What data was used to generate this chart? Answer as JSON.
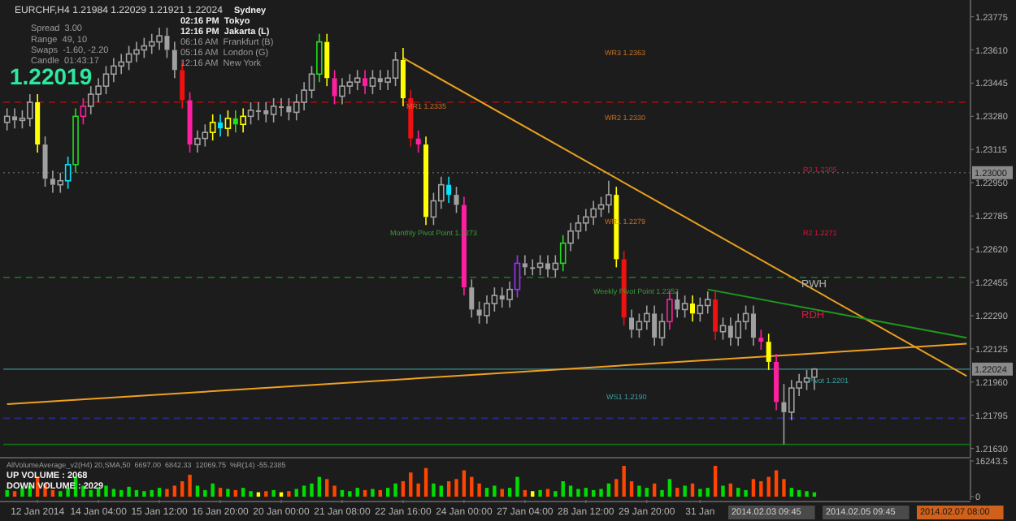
{
  "chart_data": [
    {
      "type": "candlestick",
      "title": "EURCHF,H4  1.21984 1.22029 1.21921 1.22024",
      "categories": [
        null,
        null,
        null,
        null,
        null,
        null,
        null,
        null,
        null,
        null,
        null,
        null,
        null,
        null,
        null,
        null,
        null,
        null,
        null,
        null,
        null,
        null,
        null,
        null,
        null,
        null,
        null,
        null,
        null,
        null,
        null,
        null,
        null,
        null,
        null,
        null,
        null,
        null,
        null,
        null,
        null,
        null,
        null,
        null,
        null,
        null,
        null,
        null,
        null,
        null,
        null,
        null,
        null,
        null,
        null,
        null,
        null,
        null,
        null,
        null,
        null,
        null,
        null,
        null,
        null,
        null,
        null,
        null,
        null,
        null,
        null,
        null,
        null,
        null,
        null,
        null,
        null,
        null,
        null,
        null,
        null,
        null,
        null,
        null,
        null,
        null,
        null,
        null,
        null,
        null,
        null,
        null,
        null,
        null,
        null,
        null,
        null,
        null,
        null,
        null,
        null,
        null,
        null,
        null,
        null,
        null,
        null,
        null,
        null,
        null,
        null,
        null,
        null,
        null,
        null,
        null,
        null,
        null,
        null,
        null,
        null,
        null,
        null,
        null,
        null,
        null,
        null
      ],
      "ohlc": [
        [
          1.2325,
          1.2332,
          1.2321,
          1.2328
        ],
        [
          1.2328,
          1.2332,
          1.2322,
          1.2326
        ],
        [
          1.2326,
          1.2331,
          1.2322,
          1.2327
        ],
        [
          1.2327,
          1.2339,
          1.2323,
          1.2335
        ],
        [
          1.2335,
          1.2339,
          1.231,
          1.2314
        ],
        [
          1.2314,
          1.2318,
          1.2293,
          1.2297
        ],
        [
          1.2297,
          1.2301,
          1.229,
          1.2294
        ],
        [
          1.2294,
          1.23,
          1.229,
          1.2296
        ],
        [
          1.2296,
          1.2308,
          1.2292,
          1.2304
        ],
        [
          1.2304,
          1.2332,
          1.23,
          1.2328
        ],
        [
          1.2328,
          1.2337,
          1.2324,
          1.2333
        ],
        [
          1.2333,
          1.2343,
          1.2329,
          1.2339
        ],
        [
          1.2339,
          1.2347,
          1.2335,
          1.2343
        ],
        [
          1.2343,
          1.2353,
          1.2339,
          1.2349
        ],
        [
          1.2349,
          1.2357,
          1.2345,
          1.2353
        ],
        [
          1.2353,
          1.2359,
          1.2349,
          1.2355
        ],
        [
          1.2355,
          1.2363,
          1.2351,
          1.2359
        ],
        [
          1.2359,
          1.2365,
          1.2355,
          1.2361
        ],
        [
          1.2361,
          1.2367,
          1.2357,
          1.2363
        ],
        [
          1.2363,
          1.2369,
          1.2359,
          1.2365
        ],
        [
          1.2365,
          1.2372,
          1.2361,
          1.2368
        ],
        [
          1.2368,
          1.2372,
          1.2357,
          1.2361
        ],
        [
          1.2361,
          1.2365,
          1.2347,
          1.2351
        ],
        [
          1.2351,
          1.2355,
          1.2332,
          1.2336
        ],
        [
          1.2336,
          1.234,
          1.231,
          1.2314
        ],
        [
          1.2314,
          1.2321,
          1.231,
          1.2317
        ],
        [
          1.2317,
          1.2324,
          1.2313,
          1.232
        ],
        [
          1.232,
          1.2329,
          1.2316,
          1.2325
        ],
        [
          1.2325,
          1.2329,
          1.2318,
          1.2322
        ],
        [
          1.2322,
          1.2331,
          1.2318,
          1.2327
        ],
        [
          1.2327,
          1.2331,
          1.232,
          1.2324
        ],
        [
          1.2324,
          1.2332,
          1.232,
          1.2328
        ],
        [
          1.2328,
          1.2335,
          1.2324,
          1.2331
        ],
        [
          1.2331,
          1.2335,
          1.2326,
          1.2331
        ],
        [
          1.2331,
          1.2335,
          1.2325,
          1.2329
        ],
        [
          1.2329,
          1.2337,
          1.2325,
          1.2333
        ],
        [
          1.2333,
          1.2337,
          1.2328,
          1.2333
        ],
        [
          1.2333,
          1.2337,
          1.2326,
          1.233
        ],
        [
          1.233,
          1.2339,
          1.2326,
          1.2335
        ],
        [
          1.2335,
          1.2345,
          1.2331,
          1.2341
        ],
        [
          1.2341,
          1.2353,
          1.2337,
          1.2349
        ],
        [
          1.2349,
          1.2369,
          1.2345,
          1.2365
        ],
        [
          1.2365,
          1.2369,
          1.2343,
          1.2347
        ],
        [
          1.2347,
          1.2351,
          1.2334,
          1.2338
        ],
        [
          1.2338,
          1.2347,
          1.2334,
          1.2343
        ],
        [
          1.2343,
          1.2349,
          1.2339,
          1.2345
        ],
        [
          1.2345,
          1.2351,
          1.2341,
          1.2347
        ],
        [
          1.2347,
          1.2351,
          1.2339,
          1.2343
        ],
        [
          1.2343,
          1.2351,
          1.2339,
          1.2347
        ],
        [
          1.2347,
          1.2351,
          1.2341,
          1.2345
        ],
        [
          1.2345,
          1.2351,
          1.2341,
          1.2347
        ],
        [
          1.2347,
          1.236,
          1.2343,
          1.2356
        ],
        [
          1.2356,
          1.2362,
          1.2333,
          1.2337
        ],
        [
          1.2337,
          1.2341,
          1.2313,
          1.2317
        ],
        [
          1.2317,
          1.2321,
          1.231,
          1.2314
        ],
        [
          1.2314,
          1.2318,
          1.2274,
          1.2278
        ],
        [
          1.2278,
          1.229,
          1.2274,
          1.2286
        ],
        [
          1.2286,
          1.2298,
          1.2282,
          1.2294
        ],
        [
          1.2294,
          1.2298,
          1.2285,
          1.2289
        ],
        [
          1.2289,
          1.2293,
          1.228,
          1.2284
        ],
        [
          1.2284,
          1.2288,
          1.2239,
          1.2243
        ],
        [
          1.2243,
          1.2247,
          1.2228,
          1.2232
        ],
        [
          1.2232,
          1.2236,
          1.2225,
          1.2229
        ],
        [
          1.2229,
          1.2239,
          1.2225,
          1.2235
        ],
        [
          1.2235,
          1.2243,
          1.2231,
          1.2239
        ],
        [
          1.2239,
          1.2243,
          1.2233,
          1.2237
        ],
        [
          1.2237,
          1.2246,
          1.2233,
          1.2242
        ],
        [
          1.2242,
          1.2259,
          1.2238,
          1.2255
        ],
        [
          1.2255,
          1.2259,
          1.2249,
          1.2253
        ],
        [
          1.2253,
          1.2257,
          1.2249,
          1.2253
        ],
        [
          1.2253,
          1.2259,
          1.2249,
          1.2255
        ],
        [
          1.2255,
          1.2259,
          1.2248,
          1.2252
        ],
        [
          1.2252,
          1.2259,
          1.2248,
          1.2255
        ],
        [
          1.2255,
          1.2269,
          1.2251,
          1.2265
        ],
        [
          1.2265,
          1.2275,
          1.2261,
          1.2271
        ],
        [
          1.2271,
          1.2279,
          1.2267,
          1.2275
        ],
        [
          1.2275,
          1.2282,
          1.2271,
          1.2278
        ],
        [
          1.2278,
          1.2286,
          1.2274,
          1.2282
        ],
        [
          1.2282,
          1.2288,
          1.2278,
          1.2284
        ],
        [
          1.2284,
          1.2296,
          1.228,
          1.2289
        ],
        [
          1.2289,
          1.2293,
          1.2253,
          1.2257
        ],
        [
          1.2257,
          1.2261,
          1.2224,
          1.2228
        ],
        [
          1.2228,
          1.2232,
          1.2218,
          1.2222
        ],
        [
          1.2222,
          1.223,
          1.2218,
          1.2226
        ],
        [
          1.2226,
          1.2234,
          1.2222,
          1.223
        ],
        [
          1.223,
          1.2234,
          1.2214,
          1.2218
        ],
        [
          1.2218,
          1.223,
          1.2214,
          1.2226
        ],
        [
          1.2226,
          1.2241,
          1.2222,
          1.2237
        ],
        [
          1.2237,
          1.2241,
          1.2228,
          1.2232
        ],
        [
          1.2232,
          1.2239,
          1.2228,
          1.2235
        ],
        [
          1.2235,
          1.2239,
          1.2226,
          1.223
        ],
        [
          1.223,
          1.2238,
          1.2226,
          1.2234
        ],
        [
          1.2234,
          1.2241,
          1.223,
          1.2237
        ],
        [
          1.2237,
          1.2241,
          1.2217,
          1.2221
        ],
        [
          1.2221,
          1.2228,
          1.2217,
          1.2224
        ],
        [
          1.2224,
          1.2228,
          1.2214,
          1.2218
        ],
        [
          1.2218,
          1.223,
          1.2214,
          1.2226
        ],
        [
          1.2226,
          1.2234,
          1.2222,
          1.223
        ],
        [
          1.223,
          1.2234,
          1.2214,
          1.2218
        ],
        [
          1.2218,
          1.2222,
          1.2212,
          1.2216
        ],
        [
          1.2216,
          1.222,
          1.2202,
          1.2206
        ],
        [
          1.2206,
          1.221,
          1.2182,
          1.2186
        ],
        [
          1.2186,
          1.2195,
          1.2165,
          1.2181
        ],
        [
          1.2181,
          1.2197,
          1.2177,
          1.2193
        ],
        [
          1.2193,
          1.22,
          1.2189,
          1.2196
        ],
        [
          1.2196,
          1.2202,
          1.2192,
          1.2198
        ],
        [
          1.21984,
          1.22029,
          1.21921,
          1.22024
        ],
        null,
        null,
        null,
        null,
        null,
        null,
        null,
        null,
        null,
        null,
        null,
        null,
        null,
        null,
        null,
        null,
        null,
        null,
        null,
        null
      ],
      "colors": [
        "#a0a0a0",
        "#a0a0a0",
        "#a0a0a0",
        "#a0a0a0",
        "#ffff00",
        "#a0a0a0",
        "#a0a0a0",
        "#a0a0a0",
        "#00e5ff",
        "#22dd22",
        "#ff1fa0",
        "#a0a0a0",
        "#a0a0a0",
        "#a0a0a0",
        "#a0a0a0",
        "#a0a0a0",
        "#a0a0a0",
        "#a0a0a0",
        "#a0a0a0",
        "#a0a0a0",
        "#a0a0a0",
        "#a0a0a0",
        "#a0a0a0",
        "#ee1111",
        "#ff1fa0",
        "#a0a0a0",
        "#a0a0a0",
        "#ffff00",
        "#00e5ff",
        "#ffff00",
        "#22dd22",
        "#ffff00",
        "#a0a0a0",
        "#a0a0a0",
        "#a0a0a0",
        "#a0a0a0",
        "#a0a0a0",
        "#a0a0a0",
        "#a0a0a0",
        "#a0a0a0",
        "#a0a0a0",
        "#22dd22",
        "#ffff00",
        "#ff1fa0",
        "#a0a0a0",
        "#a0a0a0",
        "#a0a0a0",
        "#ff1fa0",
        "#a0a0a0",
        "#a0a0a0",
        "#a0a0a0",
        "#a0a0a0",
        "#ffff00",
        "#ee1111",
        "#ff1fa0",
        "#ffff00",
        "#a0a0a0",
        "#a0a0a0",
        "#00e5ff",
        "#a0a0a0",
        "#ff1fa0",
        "#a0a0a0",
        "#a0a0a0",
        "#a0a0a0",
        "#a0a0a0",
        "#a0a0a0",
        "#a0a0a0",
        "#9933ff",
        "#a0a0a0",
        "#a0a0a0",
        "#a0a0a0",
        "#a0a0a0",
        "#a0a0a0",
        "#22dd22",
        "#a0a0a0",
        "#a0a0a0",
        "#a0a0a0",
        "#a0a0a0",
        "#a0a0a0",
        "#a0a0a0",
        "#ffff00",
        "#ee1111",
        "#a0a0a0",
        "#a0a0a0",
        "#a0a0a0",
        "#a0a0a0",
        "#a0a0a0",
        "#ff1fa0",
        "#a0a0a0",
        "#a0a0a0",
        "#ffff00",
        "#a0a0a0",
        "#a0a0a0",
        "#ee1111",
        "#a0a0a0",
        "#a0a0a0",
        "#a0a0a0",
        "#a0a0a0",
        "#a0a0a0",
        "#ff1fa0",
        "#ffff00",
        "#ff1fa0",
        "#a0a0a0",
        "#a0a0a0",
        "#a0a0a0",
        "#a0a0a0",
        "#a0a0a0",
        null,
        null,
        null,
        null,
        null,
        null,
        null,
        null,
        null,
        null,
        null,
        null,
        null,
        null,
        null,
        null,
        null,
        null,
        null,
        null
      ],
      "series": [
        {
          "type": "line",
          "color": "#e8a020",
          "values": [
            null,
            null,
            null,
            null,
            null,
            null,
            null,
            null,
            null,
            null,
            null,
            null,
            null,
            null,
            null,
            null,
            null,
            null,
            null,
            null,
            null,
            null,
            null,
            null,
            null,
            null,
            null,
            null,
            null,
            null,
            null,
            null,
            null,
            null,
            null,
            null,
            null,
            null,
            null,
            null,
            null,
            null,
            null,
            null,
            null,
            null,
            null,
            null,
            null,
            null,
            null,
            null,
            1.2357,
            null,
            null,
            null,
            null,
            null,
            null,
            null,
            null,
            null,
            null,
            null,
            null,
            null,
            null,
            null,
            null,
            null,
            null,
            null,
            null,
            null,
            null,
            null,
            null,
            null,
            null,
            null,
            null,
            null,
            null,
            null,
            null,
            null,
            null,
            null,
            null,
            null,
            null,
            null,
            null,
            null,
            null,
            null,
            null,
            null,
            null,
            null,
            null,
            null,
            null,
            null,
            null,
            null,
            null,
            null,
            null,
            null,
            null,
            null,
            null,
            null,
            null,
            null,
            null,
            null,
            null,
            null,
            null,
            null,
            null,
            null,
            null,
            null,
            1.2199
          ]
        },
        {
          "type": "line",
          "color": "#f0a020",
          "values": [
            1.2185,
            null,
            null,
            null,
            null,
            null,
            null,
            null,
            null,
            null,
            null,
            null,
            null,
            null,
            null,
            null,
            null,
            null,
            null,
            null,
            null,
            null,
            null,
            null,
            null,
            null,
            null,
            null,
            null,
            null,
            null,
            null,
            null,
            null,
            null,
            null,
            null,
            null,
            null,
            null,
            null,
            null,
            null,
            null,
            null,
            null,
            null,
            null,
            null,
            null,
            null,
            null,
            null,
            null,
            null,
            null,
            null,
            null,
            null,
            null,
            null,
            null,
            null,
            null,
            null,
            null,
            null,
            null,
            null,
            null,
            null,
            null,
            null,
            null,
            null,
            null,
            null,
            null,
            null,
            null,
            null,
            null,
            null,
            null,
            null,
            null,
            null,
            null,
            null,
            null,
            null,
            null,
            null,
            null,
            null,
            null,
            null,
            null,
            null,
            null,
            null,
            null,
            null,
            null,
            null,
            null,
            null,
            null,
            null,
            null,
            null,
            null,
            null,
            null,
            null,
            null,
            null,
            null,
            null,
            null,
            null,
            null,
            null,
            null,
            null,
            null,
            1.2215
          ]
        },
        {
          "type": "line",
          "color": "#1e9a1e",
          "values": [
            null,
            null,
            null,
            null,
            null,
            null,
            null,
            null,
            null,
            null,
            null,
            null,
            null,
            null,
            null,
            null,
            null,
            null,
            null,
            null,
            null,
            null,
            null,
            null,
            null,
            null,
            null,
            null,
            null,
            null,
            null,
            null,
            null,
            null,
            null,
            null,
            null,
            null,
            null,
            null,
            null,
            null,
            null,
            null,
            null,
            null,
            null,
            null,
            null,
            null,
            null,
            null,
            null,
            null,
            null,
            null,
            null,
            null,
            null,
            null,
            null,
            null,
            null,
            null,
            null,
            null,
            null,
            null,
            null,
            null,
            null,
            null,
            null,
            null,
            null,
            null,
            null,
            null,
            null,
            null,
            null,
            null,
            null,
            null,
            null,
            null,
            null,
            null,
            null,
            null,
            null,
            null,
            1.2242,
            null,
            null,
            null,
            null,
            null,
            null,
            null,
            null,
            null,
            null,
            null,
            null,
            null,
            null,
            null,
            null,
            null,
            null,
            null,
            null,
            null,
            null,
            null,
            null,
            null,
            null,
            null,
            null,
            null,
            null,
            null,
            null,
            null,
            1.2218
          ]
        }
      ],
      "ylim": [
        1.216,
        1.2385
      ],
      "yticks": [
        {
          "value": 1.23775,
          "label": "1.23775"
        },
        {
          "value": 1.2361,
          "label": "1.23610"
        },
        {
          "value": 1.23445,
          "label": "1.23445"
        },
        {
          "value": 1.2328,
          "label": "1.23280"
        },
        {
          "value": 1.23115,
          "label": "1.23115"
        },
        {
          "value": 1.2295,
          "label": "1.22950"
        },
        {
          "value": 1.22785,
          "label": "1.22785"
        },
        {
          "value": 1.2262,
          "label": "1.22620"
        },
        {
          "value": 1.22455,
          "label": "1.22455"
        },
        {
          "value": 1.2229,
          "label": "1.22290"
        },
        {
          "value": 1.22125,
          "label": "1.22125"
        },
        {
          "value": 1.2196,
          "label": "1.21960"
        },
        {
          "value": 1.21795,
          "label": "1.21795"
        },
        {
          "value": 1.2163,
          "label": "1.21630"
        }
      ],
      "tick_labels": "y",
      "ref_lines": [
        {
          "axis": "y",
          "value": 1.2335,
          "color": "#a01010",
          "line_style": "dashed"
        },
        {
          "axis": "y",
          "value": 1.23,
          "label": "1.23000",
          "color": "#5a5a5a",
          "line_style": "dotted"
        },
        {
          "axis": "y",
          "value": 1.2248,
          "color": "#1e7a1e",
          "line_style": "dashed"
        },
        {
          "axis": "y",
          "value": 1.2178,
          "color": "#2a2a90",
          "line_style": "dashed"
        },
        {
          "axis": "y",
          "value": 1.2165,
          "color": "#127012",
          "line_style": "solid"
        },
        {
          "axis": "y",
          "value": 1.22024,
          "label": "1.22024",
          "color": "#2f7070",
          "line_style": "solid"
        }
      ],
      "annotations": [
        "Spread  3.00",
        "Range  49, 10",
        "Swaps  -1.60, -2.20",
        "Candle  01:43:17",
        "1.22019",
        "Sydney",
        "02:16 PM  Tokyo",
        "12:16 PM  Jakarta (L)",
        "06:16 AM  Frankfurt (B)",
        "05:16 AM  London (G)",
        "12:16 AM  New York",
        "WR3 1.2363",
        "WR2 1.2330",
        "MR1 1.2335",
        "R3 1.2305",
        "R2 1.2271",
        "WR1 1.2279",
        "Monthly Pivot Point 1.2273",
        "Weekly Pivot Point 1.2252",
        "RWH",
        "RDH",
        "WS1 1.2190",
        "Pivot 1.2201"
      ]
    },
    {
      "type": "bar",
      "categories": [
        null,
        null,
        null,
        null,
        "12 Jan 2014",
        null,
        null,
        null,
        null,
        null,
        null,
        null,
        "14 Jan 04:00",
        null,
        null,
        null,
        null,
        null,
        null,
        null,
        "15 Jan 12:00",
        null,
        null,
        null,
        null,
        null,
        null,
        null,
        "16 Jan 20:00",
        null,
        null,
        null,
        null,
        null,
        null,
        null,
        "20 Jan 00:00",
        null,
        null,
        null,
        null,
        null,
        null,
        null,
        "21 Jan 08:00",
        null,
        null,
        null,
        null,
        null,
        null,
        null,
        "22 Jan 16:00",
        null,
        null,
        null,
        null,
        null,
        null,
        null,
        "24 Jan 00:00",
        null,
        null,
        null,
        null,
        null,
        null,
        null,
        "27 Jan 04:00",
        null,
        null,
        null,
        null,
        null,
        null,
        null,
        "28 Jan 12:00",
        null,
        null,
        null,
        null,
        null,
        null,
        null,
        "29 Jan 20:00",
        null,
        null,
        null,
        null,
        null,
        null,
        "31 Jan",
        null,
        null,
        null,
        null,
        null,
        null,
        null,
        null,
        null,
        null,
        null,
        null,
        null,
        null,
        null,
        null,
        null,
        null,
        null,
        null,
        null,
        null,
        null,
        null,
        null,
        null,
        null,
        null,
        null,
        null,
        null,
        null,
        null,
        null,
        null
      ],
      "values": [
        3000,
        2500,
        4000,
        5000,
        9000,
        6000,
        3000,
        2500,
        4000,
        9000,
        5000,
        3000,
        4000,
        5000,
        3500,
        3000,
        4500,
        3000,
        2500,
        3000,
        4000,
        3500,
        5000,
        7000,
        10000,
        5000,
        3000,
        6000,
        4000,
        3500,
        3000,
        4000,
        2500,
        2000,
        2500,
        3000,
        2000,
        2500,
        3500,
        5000,
        6000,
        9000,
        8000,
        5000,
        3000,
        2500,
        4000,
        3000,
        3500,
        3000,
        4000,
        6000,
        7000,
        11000,
        6000,
        13000,
        6000,
        5000,
        7000,
        8000,
        12000,
        9000,
        6000,
        4000,
        5000,
        3500,
        4000,
        9000,
        3000,
        2500,
        3000,
        3500,
        2500,
        7000,
        5000,
        3500,
        4000,
        3000,
        3500,
        6000,
        8000,
        14000,
        7000,
        5000,
        4000,
        6000,
        3000,
        8000,
        4000,
        5000,
        6000,
        3500,
        4000,
        14000,
        5000,
        6000,
        4000,
        3000,
        8000,
        7000,
        9000,
        12000,
        8000,
        4000,
        3000,
        2500,
        2000,
        null,
        null,
        null,
        null,
        null,
        null,
        null,
        null,
        null,
        null,
        null,
        null,
        null,
        null,
        null,
        null,
        null,
        null,
        null,
        null
      ],
      "colors": [
        "#00dd00",
        "#ff4500",
        "#00dd00",
        "#00dd00",
        "#ff4500",
        "#ff4500",
        "#ff4500",
        "#00dd00",
        "#00dd00",
        "#00dd00",
        "#00dd00",
        "#00dd00",
        "#00dd00",
        "#00dd00",
        "#00dd00",
        "#00dd00",
        "#00dd00",
        "#00dd00",
        "#00dd00",
        "#00dd00",
        "#00dd00",
        "#ff4500",
        "#ff4500",
        "#ff4500",
        "#ff4500",
        "#00dd00",
        "#00dd00",
        "#00dd00",
        "#ff4500",
        "#00dd00",
        "#ff4500",
        "#00dd00",
        "#00dd00",
        "#ffff00",
        "#ff4500",
        "#00dd00",
        "#ffff00",
        "#ff4500",
        "#00dd00",
        "#00dd00",
        "#00dd00",
        "#00dd00",
        "#ff4500",
        "#ff4500",
        "#00dd00",
        "#00dd00",
        "#00dd00",
        "#ff4500",
        "#00dd00",
        "#ff4500",
        "#00dd00",
        "#00dd00",
        "#ff4500",
        "#ff4500",
        "#ff4500",
        "#ff4500",
        "#00dd00",
        "#00dd00",
        "#ff4500",
        "#ff4500",
        "#ff4500",
        "#ff4500",
        "#ff4500",
        "#00dd00",
        "#00dd00",
        "#ff4500",
        "#00dd00",
        "#00dd00",
        "#ff4500",
        "#ffff00",
        "#00dd00",
        "#ff4500",
        "#00dd00",
        "#00dd00",
        "#00dd00",
        "#00dd00",
        "#00dd00",
        "#00dd00",
        "#00dd00",
        "#00dd00",
        "#ff4500",
        "#ff4500",
        "#ff4500",
        "#00dd00",
        "#00dd00",
        "#ff4500",
        "#00dd00",
        "#00dd00",
        "#ff4500",
        "#00dd00",
        "#ff4500",
        "#00dd00",
        "#00dd00",
        "#ff4500",
        "#00dd00",
        "#ff4500",
        "#00dd00",
        "#00dd00",
        "#ff4500",
        "#ff4500",
        "#ff4500",
        "#ff4500",
        "#ff4500",
        "#00dd00",
        "#00dd00",
        "#00dd00",
        "#00dd00",
        null,
        null,
        null,
        null,
        null,
        null,
        null,
        null,
        null,
        null,
        null,
        null,
        null,
        null,
        null,
        null,
        null,
        null,
        null,
        null
      ],
      "ylim": [
        0,
        16243.5
      ],
      "yticks": [
        16243.5,
        0
      ],
      "annotations": [
        "AllVolumeAverage_v2(H4) 20,SMA,50  6697.00  6842.33  12069.75  %R(14) -55.2385",
        "UP VOLUME : 2068",
        "DOWN VOLUME : 2029",
        "2014.02.03 09:45",
        "2014.02.05 09:45",
        "2014.02.07 08:00"
      ]
    }
  ]
}
